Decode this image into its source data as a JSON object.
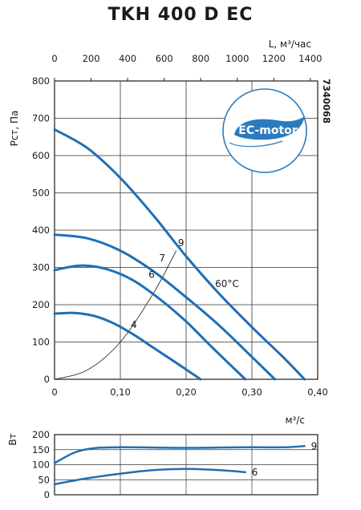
{
  "title": "TKH 400 D EC",
  "code": "7340068",
  "badge": "EC-motor",
  "temperature_label": "60°C",
  "chart_data": [
    {
      "type": "line",
      "name": "pressure",
      "xlabel": "м³/с",
      "ylabel": "Pст, Па",
      "x_top_label": "L, м³/час",
      "xlim": [
        0,
        0.4
      ],
      "ylim": [
        0,
        800
      ],
      "x_top_lim": [
        0,
        1440
      ],
      "xticks": [
        "0",
        "0,10",
        "0,20",
        "0,30",
        "0,40"
      ],
      "yticks": [
        "0",
        "100",
        "200",
        "300",
        "400",
        "500",
        "600",
        "700",
        "800"
      ],
      "x_top_ticks": [
        "0",
        "200",
        "400",
        "600",
        "800",
        "1000",
        "1200",
        "1400"
      ],
      "grid": true,
      "series": [
        {
          "name": "9",
          "x": [
            0,
            0.05,
            0.1,
            0.15,
            0.2,
            0.25,
            0.3,
            0.35,
            0.38
          ],
          "y": [
            670,
            620,
            540,
            440,
            330,
            230,
            140,
            55,
            0
          ]
        },
        {
          "name": "7",
          "x": [
            0,
            0.05,
            0.1,
            0.15,
            0.2,
            0.25,
            0.3,
            0.335
          ],
          "y": [
            388,
            378,
            345,
            290,
            220,
            145,
            60,
            0
          ]
        },
        {
          "name": "6",
          "x": [
            0,
            0.04,
            0.08,
            0.12,
            0.16,
            0.2,
            0.24,
            0.29
          ],
          "y": [
            293,
            305,
            295,
            265,
            215,
            155,
            85,
            0
          ]
        },
        {
          "name": "4",
          "x": [
            0,
            0.03,
            0.06,
            0.09,
            0.12,
            0.15,
            0.18,
            0.222
          ],
          "y": [
            176,
            178,
            170,
            150,
            120,
            85,
            50,
            0
          ]
        }
      ],
      "system_curve": {
        "x": [
          0,
          0.05,
          0.1,
          0.15,
          0.185
        ],
        "y": [
          0,
          25,
          100,
          230,
          345
        ]
      }
    },
    {
      "type": "line",
      "name": "power",
      "ylabel": "Вт",
      "ylim": [
        0,
        200
      ],
      "yticks": [
        "0",
        "50",
        "100",
        "150",
        "200"
      ],
      "grid": true,
      "series": [
        {
          "name": "9",
          "x": [
            0,
            0.03,
            0.06,
            0.1,
            0.15,
            0.2,
            0.25,
            0.3,
            0.35,
            0.38
          ],
          "y": [
            105,
            140,
            155,
            158,
            157,
            156,
            157,
            158,
            158,
            162
          ]
        },
        {
          "name": "6",
          "x": [
            0,
            0.05,
            0.1,
            0.15,
            0.2,
            0.25,
            0.29
          ],
          "y": [
            35,
            55,
            70,
            82,
            86,
            82,
            75
          ]
        }
      ]
    }
  ]
}
